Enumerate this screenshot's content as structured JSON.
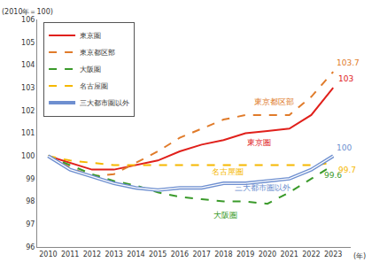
{
  "chart_data": {
    "type": "line",
    "y_label": "(2010年＝100)",
    "x_label": "(年)",
    "x": [
      2010,
      2011,
      2012,
      2013,
      2014,
      2015,
      2016,
      2017,
      2018,
      2019,
      2020,
      2021,
      2022,
      2023
    ],
    "xlim": [
      2009.5,
      2023.8
    ],
    "xticks": [
      2010,
      2011,
      2012,
      2013,
      2014,
      2015,
      2016,
      2017,
      2018,
      2019,
      2020,
      2021,
      2022,
      2023
    ],
    "ylim": [
      96,
      106
    ],
    "yticks": [
      96,
      97,
      98,
      99,
      100,
      101,
      102,
      103,
      104,
      105,
      106
    ],
    "grid": false,
    "legend": "upper left",
    "series": [
      {
        "name": "東京圏",
        "color": "#e0201b",
        "line_style": "solid",
        "values": [
          100,
          99.7,
          99.4,
          99.4,
          99.6,
          99.8,
          100.2,
          100.5,
          100.7,
          101.0,
          101.1,
          101.2,
          101.8,
          103
        ],
        "value_labels": [
          null,
          null,
          null,
          null,
          null,
          null,
          null,
          null,
          null,
          null,
          null,
          null,
          null,
          "103"
        ]
      },
      {
        "name": "東京都区部",
        "color": "#e07b2a",
        "line_style": "dash",
        "values": [
          100,
          99.5,
          99.1,
          99.2,
          99.7,
          100.2,
          100.8,
          101.2,
          101.6,
          101.8,
          101.8,
          101.8,
          102.6,
          103.7
        ],
        "value_labels": [
          null,
          null,
          null,
          null,
          null,
          null,
          null,
          null,
          null,
          null,
          null,
          null,
          null,
          "103.7"
        ]
      },
      {
        "name": "大阪圏",
        "color": "#3a9a2a",
        "line_style": "dash",
        "values": [
          100,
          99.6,
          99.2,
          98.9,
          98.7,
          98.4,
          98.2,
          98.1,
          98.0,
          98.0,
          97.9,
          98.4,
          99.0,
          99.6
        ],
        "value_labels": [
          null,
          null,
          null,
          null,
          null,
          null,
          null,
          null,
          null,
          null,
          null,
          null,
          null,
          "99.6"
        ]
      },
      {
        "name": "名古屋圏",
        "color": "#f5b800",
        "line_style": "dash",
        "values": [
          100,
          99.8,
          99.7,
          99.6,
          99.6,
          99.6,
          99.6,
          99.6,
          99.6,
          99.6,
          99.6,
          99.6,
          99.6,
          99.7
        ],
        "value_labels": [
          null,
          null,
          null,
          null,
          null,
          null,
          null,
          null,
          null,
          null,
          null,
          null,
          null,
          "99.7"
        ]
      },
      {
        "name": "三大都市圏以外",
        "color": "#6e8fd0",
        "line_style": "double",
        "values": [
          100,
          99.4,
          99.1,
          98.8,
          98.6,
          98.5,
          98.6,
          98.6,
          98.8,
          98.8,
          98.9,
          99.0,
          99.4,
          100
        ],
        "value_labels": [
          null,
          null,
          null,
          null,
          null,
          null,
          null,
          null,
          null,
          null,
          null,
          null,
          null,
          "100"
        ]
      }
    ],
    "annotations": [
      {
        "text": "東京都区部",
        "x": 2020.3,
        "y": 102.4,
        "color": "#e07b2a"
      },
      {
        "text": "東京圏",
        "x": 2019.6,
        "y": 100.6,
        "color": "#e0201b"
      },
      {
        "text": "名古屋圏",
        "x": 2018.2,
        "y": 99.3,
        "color": "#f5b800"
      },
      {
        "text": "三大都市圏以外",
        "x": 2019.8,
        "y": 98.6,
        "color": "#6e8fd0"
      },
      {
        "text": "大阪圏",
        "x": 2018.1,
        "y": 97.4,
        "color": "#3a9a2a"
      }
    ]
  }
}
